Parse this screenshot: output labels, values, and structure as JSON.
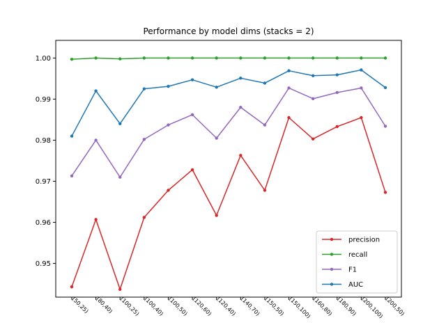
{
  "chart_data": {
    "type": "line",
    "title": "Performance by model dims (stacks = 2)",
    "xlabel": "",
    "ylabel": "",
    "categories": [
      "(50,25)",
      "(80,40)",
      "(100,25)",
      "(100,40)",
      "(100,50)",
      "(120,60)",
      "(120,40)",
      "(140,70)",
      "(150,50)",
      "(150,100)",
      "(160,80)",
      "(180,90)",
      "(200,100)",
      "(200,50)"
    ],
    "ylim": [
      0.9418,
      1.0043
    ],
    "yticks": [
      0.95,
      0.96,
      0.97,
      0.98,
      0.99,
      1.0
    ],
    "ytick_labels": [
      "0.95",
      "0.96",
      "0.97",
      "0.98",
      "0.99",
      "1.00"
    ],
    "grid": false,
    "legend_position": "lower-right",
    "series": [
      {
        "name": "precision",
        "color": "#d62728",
        "values": [
          0.9443,
          0.9607,
          0.9437,
          0.9612,
          0.9678,
          0.9728,
          0.9617,
          0.9763,
          0.9678,
          0.9855,
          0.9803,
          0.9833,
          0.9855,
          0.9673
        ]
      },
      {
        "name": "recall",
        "color": "#2ca02c",
        "values": [
          0.9997,
          1.0,
          0.9998,
          1.0,
          1.0,
          1.0,
          1.0,
          1.0,
          1.0,
          1.0,
          1.0,
          1.0,
          1.0,
          1.0
        ]
      },
      {
        "name": "F1",
        "color": "#9467bd",
        "values": [
          0.9713,
          0.98,
          0.971,
          0.9802,
          0.9837,
          0.9862,
          0.9805,
          0.988,
          0.9837,
          0.9927,
          0.9901,
          0.9916,
          0.9927,
          0.9834
        ]
      },
      {
        "name": "AUC",
        "color": "#1f77b4",
        "values": [
          0.981,
          0.992,
          0.984,
          0.9925,
          0.9931,
          0.9947,
          0.9929,
          0.9951,
          0.9939,
          0.9969,
          0.9957,
          0.9959,
          0.9971,
          0.9928
        ]
      }
    ]
  }
}
